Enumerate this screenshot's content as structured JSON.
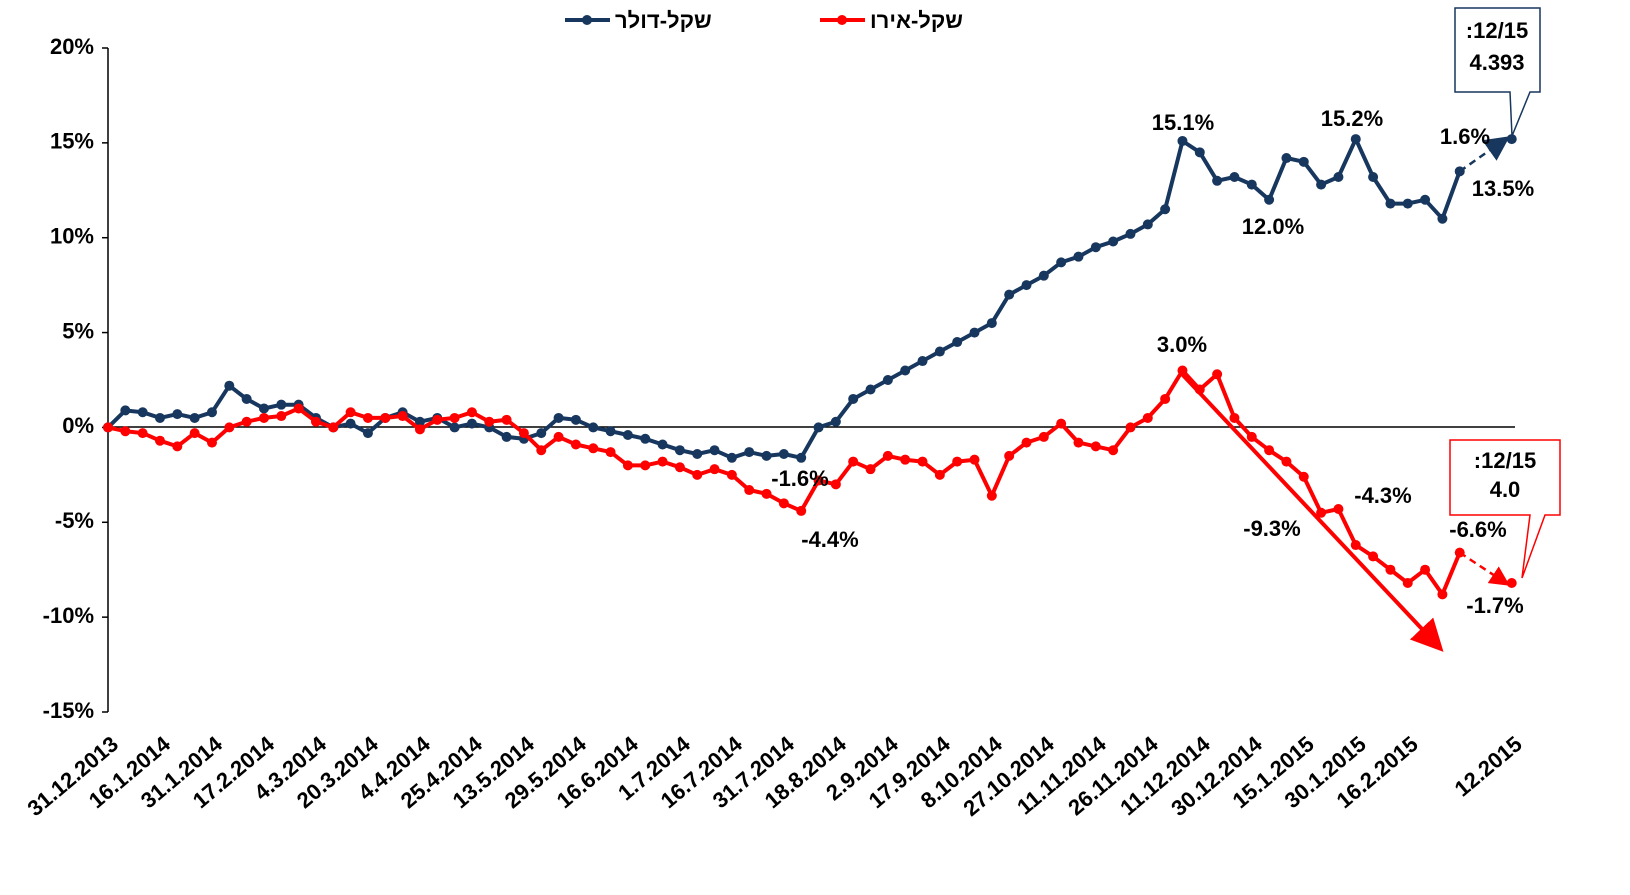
{
  "chart_data": {
    "type": "line",
    "legend": "top",
    "categories": [
      "31.12.2013",
      null,
      null,
      "16.1.2014",
      null,
      null,
      "31.1.2014",
      null,
      null,
      "17.2.2014",
      null,
      null,
      "4.3.2014",
      null,
      null,
      "20.3.2014",
      null,
      null,
      "4.4.2014",
      null,
      null,
      "25.4.2014",
      null,
      null,
      "13.5.2014",
      null,
      null,
      "29.5.2014",
      null,
      null,
      "16.6.2014",
      null,
      null,
      "1.7.2014",
      null,
      null,
      "16.7.2014",
      null,
      null,
      "31.7.2014",
      null,
      null,
      "18.8.2014",
      null,
      null,
      "2.9.2014",
      null,
      null,
      "17.9.2014",
      null,
      null,
      "8.10.2014",
      null,
      null,
      "27.10.2014",
      null,
      null,
      "11.11.2014",
      null,
      null,
      "26.11.2014",
      null,
      null,
      "11.12.2014",
      null,
      null,
      "30.12.2014",
      null,
      null,
      "15.1.2015",
      null,
      null,
      "30.1.2015",
      null,
      null,
      "16.2.2015",
      null,
      null,
      null,
      null,
      null,
      "12.2015"
    ],
    "series": [
      {
        "name": "שקל-דולר",
        "color": "#17375e",
        "values": [
          0,
          0.9,
          0.8,
          0.5,
          0.7,
          0.5,
          0.8,
          2.2,
          1.5,
          1.0,
          1.2,
          1.2,
          0.5,
          0.0,
          0.2,
          -0.3,
          0.5,
          0.8,
          0.3,
          0.5,
          0.0,
          0.2,
          0.0,
          -0.5,
          -0.6,
          -0.3,
          0.5,
          0.4,
          0.0,
          -0.2,
          -0.4,
          -0.6,
          -0.9,
          -1.2,
          -1.4,
          -1.2,
          -1.6,
          -1.3,
          -1.5,
          -1.4,
          -1.6,
          0.0,
          0.3,
          1.5,
          2.0,
          2.5,
          3.0,
          3.5,
          4.0,
          4.5,
          5.0,
          5.5,
          7.0,
          7.5,
          8.0,
          8.7,
          9.0,
          9.5,
          9.8,
          10.2,
          10.7,
          11.5,
          15.1,
          14.5,
          13.0,
          13.2,
          12.8,
          12.0,
          14.2,
          14.0,
          12.8,
          13.2,
          15.2,
          13.2,
          11.8,
          11.8,
          12.0,
          11.0,
          13.5,
          null,
          null,
          15.2
        ]
      },
      {
        "name": "שקל-אירו",
        "color": "#ff0000",
        "values": [
          0,
          -0.2,
          -0.3,
          -0.7,
          -1.0,
          -0.3,
          -0.8,
          0.0,
          0.3,
          0.5,
          0.6,
          1.0,
          0.3,
          0.0,
          0.8,
          0.5,
          0.5,
          0.6,
          -0.1,
          0.4,
          0.5,
          0.8,
          0.3,
          0.4,
          -0.3,
          -1.2,
          -0.5,
          -0.9,
          -1.1,
          -1.3,
          -2.0,
          -2.0,
          -1.8,
          -2.1,
          -2.5,
          -2.2,
          -2.5,
          -3.3,
          -3.5,
          -4.0,
          -4.4,
          -2.8,
          -3.0,
          -1.8,
          -2.2,
          -1.5,
          -1.7,
          -1.8,
          -2.5,
          -1.8,
          -1.7,
          -3.6,
          -1.5,
          -0.8,
          -0.5,
          0.2,
          -0.8,
          -1.0,
          -1.2,
          0.0,
          0.5,
          1.5,
          3.0,
          2.0,
          2.8,
          0.5,
          -0.5,
          -1.2,
          -1.8,
          -2.6,
          -4.5,
          -4.3,
          -6.2,
          -6.8,
          -7.5,
          -8.2,
          -7.5,
          -8.8,
          -6.6,
          null,
          null,
          -8.2
        ]
      }
    ],
    "ylim": [
      -15,
      20
    ],
    "yticks": [
      {
        "value": -15,
        "label": "-15%"
      },
      {
        "value": -10,
        "label": "-10%"
      },
      {
        "value": -5,
        "label": "-5%"
      },
      {
        "value": 0,
        "label": "0%"
      },
      {
        "value": 5,
        "label": "5%"
      },
      {
        "value": 10,
        "label": "10%"
      },
      {
        "value": 15,
        "label": "15%"
      },
      {
        "value": 20,
        "label": "20%"
      }
    ],
    "annotations": [
      {
        "text": "15.1%",
        "color": "#000000"
      },
      {
        "text": "15.2%",
        "color": "#000000"
      },
      {
        "text": "12.0%",
        "color": "#000000"
      },
      {
        "text": "13.5%",
        "color": "#000000"
      },
      {
        "text": "1.6%",
        "color": "#17375e"
      },
      {
        "text": "-1.6%",
        "color": "#000000"
      },
      {
        "text": "3.0%",
        "color": "#000000"
      },
      {
        "text": "-4.4%",
        "color": "#000000"
      },
      {
        "text": "-4.3%",
        "color": "#000000"
      },
      {
        "text": "-6.6%",
        "color": "#000000"
      },
      {
        "text": "-1.7%",
        "color": "#ff0000"
      },
      {
        "text": "-9.3%",
        "color": "#ff0000"
      },
      {
        "text": ":12/15",
        "color": "#17375e"
      },
      {
        "text": "4.393",
        "color": "#17375e"
      },
      {
        "text": ":12/15",
        "color": "#ff0000"
      },
      {
        "text": "4.0",
        "color": "#ff0000"
      }
    ]
  }
}
